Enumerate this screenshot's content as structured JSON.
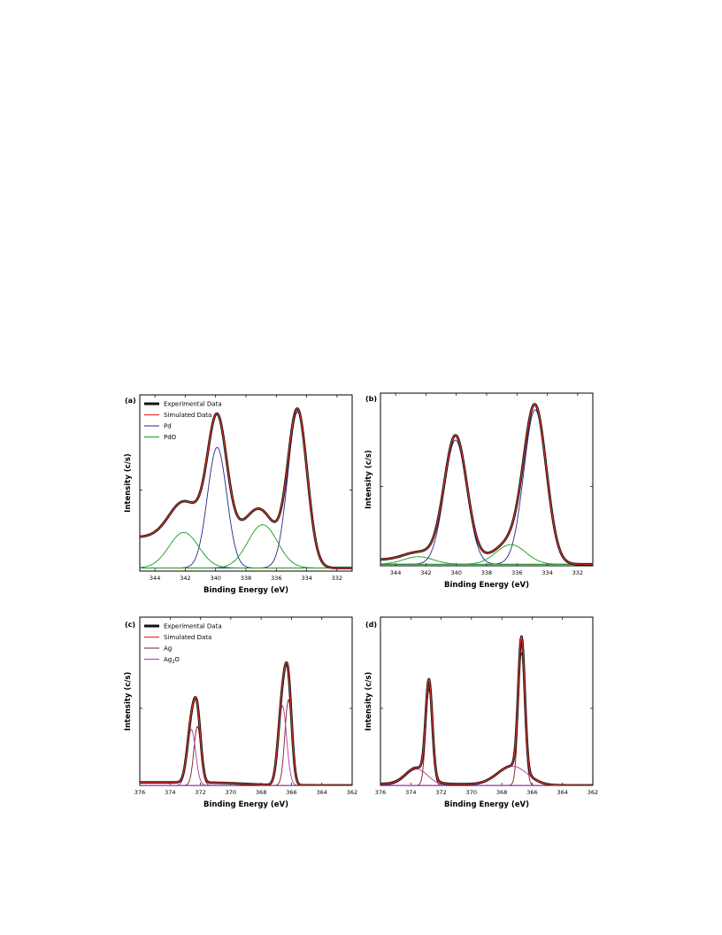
{
  "chart_data": [
    {
      "panel": "(a)",
      "type": "line",
      "xlabel": "Binding Energy (eV)",
      "ylabel": "Intensity (c/s)",
      "xlim": [
        345,
        331
      ],
      "x_reversed": true,
      "xticks": [
        344,
        342,
        340,
        338,
        336,
        334,
        332
      ],
      "legend": [
        "Experimental Data",
        "Simulated Data",
        "Pd",
        "PdO"
      ],
      "legend_placement": "top-left",
      "baseline": 0.02,
      "background": {
        "high_side": 0.2,
        "low_side": 0.0,
        "center": 337.0,
        "width": 0.6
      },
      "components": [
        {
          "name": "Pd",
          "series": "Pd",
          "center": 334.6,
          "height": 1.01,
          "fwhm": 1.5
        },
        {
          "name": "Pd",
          "series": "Pd",
          "center": 339.9,
          "height": 0.78,
          "fwhm": 1.5
        },
        {
          "name": "PdO",
          "series": "PdO",
          "center": 336.9,
          "height": 0.28,
          "fwhm": 2.3
        },
        {
          "name": "PdO",
          "series": "PdO",
          "center": 342.1,
          "height": 0.23,
          "fwhm": 2.3
        }
      ]
    },
    {
      "panel": "(b)",
      "type": "line",
      "xlabel": "Binding Energy (eV)",
      "ylabel": "Intensity (c/s)",
      "xlim": [
        345,
        331
      ],
      "x_reversed": true,
      "xticks": [
        344,
        342,
        340,
        338,
        336,
        334,
        332
      ],
      "legend": [],
      "baseline": 0.01,
      "background": {
        "high_side": 0.03,
        "low_side": 0.0,
        "center": 337.0,
        "width": 0.8
      },
      "components": [
        {
          "name": "Pd",
          "series": "Pd",
          "center": 334.8,
          "height": 1.02,
          "fwhm": 1.75
        },
        {
          "name": "Pd",
          "series": "Pd",
          "center": 340.05,
          "height": 0.82,
          "fwhm": 1.75
        },
        {
          "name": "PdO",
          "series": "PdO",
          "center": 336.4,
          "height": 0.13,
          "fwhm": 2.3
        },
        {
          "name": "PdO",
          "series": "PdO",
          "center": 342.5,
          "height": 0.05,
          "fwhm": 2.3
        }
      ]
    },
    {
      "panel": "(c)",
      "type": "line",
      "xlabel": "Binding Energy (eV)",
      "ylabel": "Intensity (c/s)",
      "xlim": [
        376,
        362
      ],
      "x_reversed": true,
      "xticks": [
        376,
        374,
        372,
        370,
        368,
        366,
        364,
        362
      ],
      "legend": [
        "Experimental Data",
        "Simulated Data",
        "Ag",
        "Ag2O"
      ],
      "legend_ag2o_main": "Ag",
      "legend_ag2o_sub": "2",
      "legend_ag2o_tail": "O",
      "legend_placement": "top-left",
      "baseline": 0.0,
      "background": {
        "high_side": 0.02,
        "low_side": 0.0,
        "center": 369.0,
        "width": 1.0
      },
      "components": [
        {
          "name": "Ag",
          "series": "Ag",
          "center": 366.2,
          "height": 0.58,
          "fwhm": 0.55
        },
        {
          "name": "Ag",
          "series": "Ag",
          "center": 372.2,
          "height": 0.4,
          "fwhm": 0.55
        },
        {
          "name": "Ag2O",
          "series": "Ag2O",
          "center": 366.6,
          "height": 0.54,
          "fwhm": 0.65
        },
        {
          "name": "Ag2O",
          "series": "Ag2O",
          "center": 372.6,
          "height": 0.38,
          "fwhm": 0.65
        }
      ]
    },
    {
      "panel": "(d)",
      "type": "line",
      "xlabel": "Binding Energy (eV)",
      "ylabel": "Intensity (c/s)",
      "xlim": [
        376,
        362
      ],
      "x_reversed": true,
      "xticks": [
        376,
        374,
        372,
        370,
        368,
        366,
        364,
        362
      ],
      "legend": [],
      "baseline": 0.0,
      "background": {
        "high_side": 0.01,
        "low_side": 0.0,
        "center": 369.0,
        "width": 1.0
      },
      "components": [
        {
          "name": "Ag",
          "series": "Ag",
          "center": 366.7,
          "height": 0.9,
          "fwhm": 0.5
        },
        {
          "name": "Ag",
          "series": "Ag",
          "center": 372.8,
          "height": 0.65,
          "fwhm": 0.5
        },
        {
          "name": "Ag2O",
          "series": "Ag2O",
          "center": 367.3,
          "height": 0.13,
          "fwhm": 2.3
        },
        {
          "name": "Ag2O",
          "series": "Ag2O",
          "center": 373.6,
          "height": 0.11,
          "fwhm": 1.7
        }
      ]
    }
  ],
  "colors": {
    "experimental": "#111111",
    "simulated": "#e8332a",
    "Pd": "#24278a",
    "PdO": "#1a9a1a",
    "Ag": "#7a1e1e",
    "Ag2O": "#a43aa4"
  }
}
